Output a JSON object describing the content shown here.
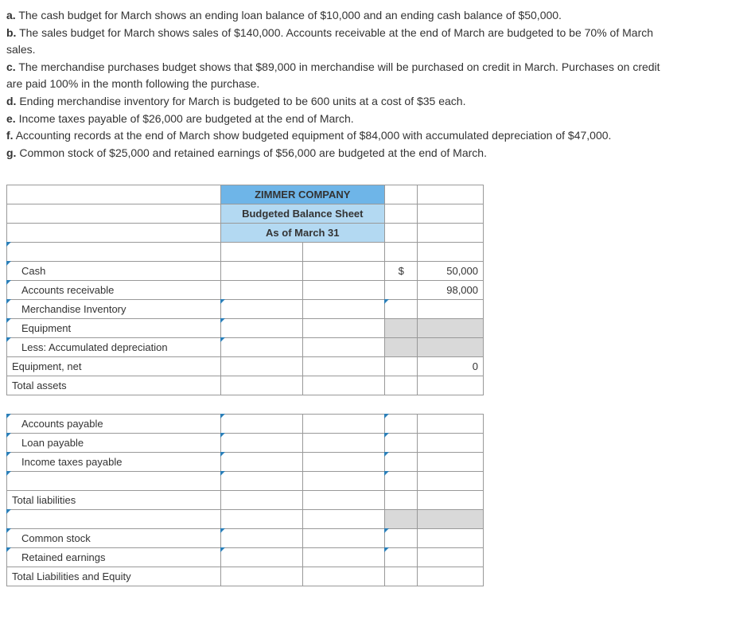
{
  "instructions": {
    "a": {
      "letter": "a.",
      "text": "The cash budget for March shows an ending loan balance of $10,000 and an ending cash balance of $50,000."
    },
    "b": {
      "letter": "b.",
      "text1": "The sales budget for March shows sales of $140,000. Accounts receivable at the end of March are budgeted to be 70% of March",
      "text2": "sales."
    },
    "c": {
      "letter": "c.",
      "text1": "The merchandise purchases budget shows that $89,000 in merchandise will be purchased on credit in March. Purchases on credit",
      "text2": "are paid 100% in the month following the purchase."
    },
    "d": {
      "letter": "d.",
      "text": "Ending merchandise inventory for March is budgeted to be 600 units at a cost of $35 each."
    },
    "e": {
      "letter": "e.",
      "text": "Income taxes payable of $26,000 are budgeted at the end of March."
    },
    "f": {
      "letter": "f.",
      "text": "Accounting records at the end of March show budgeted equipment of $84,000 with accumulated depreciation of $47,000."
    },
    "g": {
      "letter": "g.",
      "text": "Common stock of $25,000 and retained earnings of $56,000 are budgeted at the end of March."
    }
  },
  "sheet": {
    "company": "ZIMMER COMPANY",
    "title": "Budgeted Balance Sheet",
    "asof": "As of March 31",
    "rows": {
      "cash": "Cash",
      "ar": "Accounts receivable",
      "merch": "Merchandise Inventory",
      "equip": "Equipment",
      "less": "Less: Accumulated depreciation",
      "equipnet": "Equipment, net",
      "totassets": "Total assets",
      "ap": "Accounts payable",
      "loan": "Loan payable",
      "tax": "Income taxes payable",
      "totliab": "Total liabilities",
      "common": "Common stock",
      "re": "Retained earnings",
      "totle": "Total Liabilities and Equity"
    },
    "dollar": "$",
    "values": {
      "cash": "50,000",
      "ar": "98,000",
      "equipnet": "0"
    }
  }
}
